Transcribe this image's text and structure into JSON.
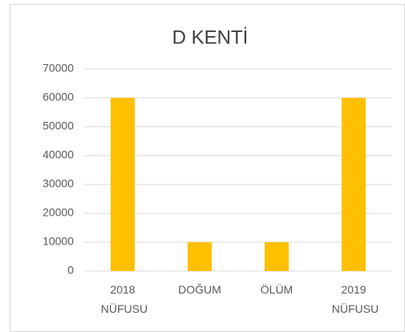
{
  "chart_data": {
    "type": "bar",
    "title": "D KENTİ",
    "categories": [
      "2018 NÜFUSU",
      "DOĞUM",
      "ÖLÜM",
      "2019 NÜFUSU"
    ],
    "values": [
      60000,
      10000,
      10000,
      60000
    ],
    "color": "#ffc000",
    "ylim": [
      0,
      70000
    ],
    "yticks": [
      0,
      10000,
      20000,
      30000,
      40000,
      50000,
      60000,
      70000
    ],
    "grid": true
  }
}
